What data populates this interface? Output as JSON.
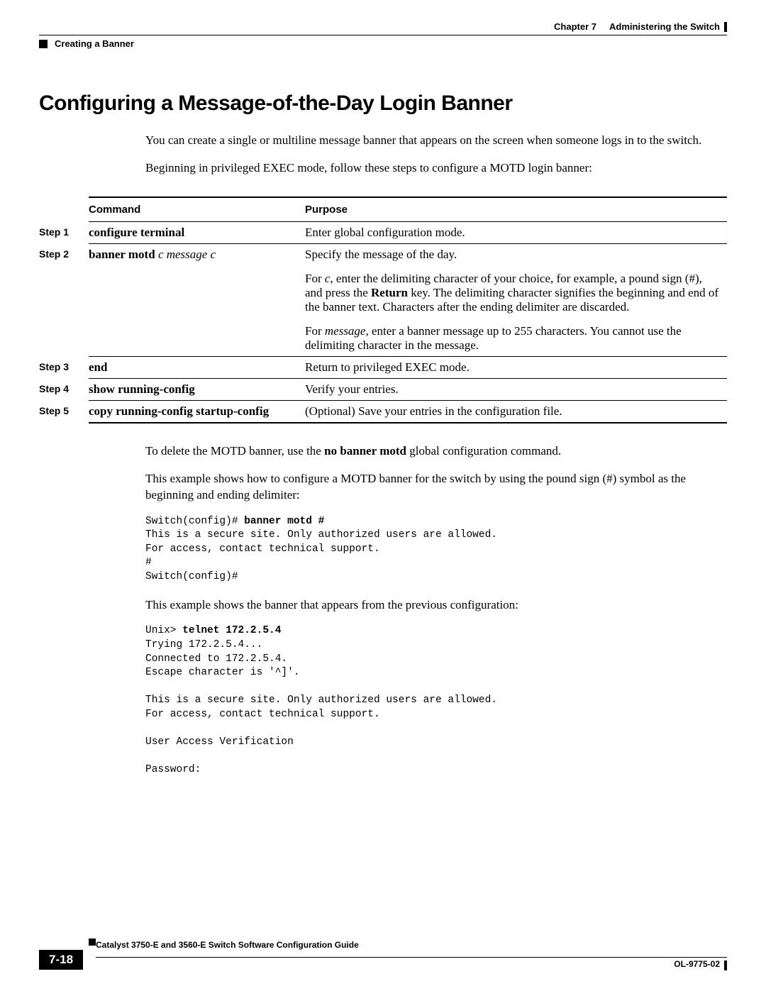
{
  "header": {
    "chapter_label": "Chapter 7",
    "chapter_title": "Administering the Switch",
    "section_title": "Creating a Banner"
  },
  "title": "Configuring a Message-of-the-Day Login Banner",
  "intro_p1": "You can create a single or multiline message banner that appears on the screen when someone logs in to the switch.",
  "intro_p2": "Beginning in privileged EXEC mode, follow these steps to configure a MOTD login banner:",
  "table": {
    "col_command": "Command",
    "col_purpose": "Purpose",
    "rows": [
      {
        "step": "Step 1",
        "command_bold": "configure terminal",
        "command_args": "",
        "purpose_paras": [
          "Enter global configuration mode."
        ]
      },
      {
        "step": "Step 2",
        "command_bold": "banner motd",
        "command_args": " c message c",
        "purpose_paras": [
          "Specify the message of the day.",
          "For <i>c</i>, enter the delimiting character of your choice, for example, a pound sign (#), and press the <b>Return</b> key. The delimiting character signifies the beginning and end of the banner text. Characters after the ending delimiter are discarded.",
          "For <i>message</i>, enter a banner message up to 255 characters. You cannot use the delimiting character in the message."
        ]
      },
      {
        "step": "Step 3",
        "command_bold": "end",
        "command_args": "",
        "purpose_paras": [
          "Return to privileged EXEC mode."
        ]
      },
      {
        "step": "Step 4",
        "command_bold": "show running-config",
        "command_args": "",
        "purpose_paras": [
          "Verify your entries."
        ]
      },
      {
        "step": "Step 5",
        "command_bold": "copy running-config startup-config",
        "command_args": "",
        "purpose_paras": [
          "(Optional) Save your entries in the configuration file."
        ]
      }
    ]
  },
  "after_p1_pre": "To delete the MOTD banner, use the ",
  "after_p1_bold": "no banner motd",
  "after_p1_post": " global configuration command.",
  "after_p2": "This example shows how to configure a MOTD banner for the switch by using the pound sign (#) symbol as the beginning and ending delimiter:",
  "code1_prefix": "Switch(config)# ",
  "code1_cmd": "banner motd #",
  "code1_rest": "This is a secure site. Only authorized users are allowed.\nFor access, contact technical support.\n#\nSwitch(config)#",
  "after_p3": "This example shows the banner that appears from the previous configuration:",
  "code2_prefix": "Unix> ",
  "code2_cmd": "telnet 172.2.5.4",
  "code2_rest": "Trying 172.2.5.4...\nConnected to 172.2.5.4.\nEscape character is '^]'.\n\nThis is a secure site. Only authorized users are allowed.\nFor access, contact technical support.\n\nUser Access Verification\n\nPassword:",
  "footer": {
    "guide_title": "Catalyst 3750-E and 3560-E Switch Software Configuration Guide",
    "page_number": "7-18",
    "doc_number": "OL-9775-02"
  },
  "colors": {
    "text": "#000000",
    "background": "#ffffff"
  },
  "fonts": {
    "body": "Times New Roman",
    "heading": "Arial",
    "mono": "Courier New",
    "title_size_pt": 30,
    "body_size_pt": 17,
    "code_size_pt": 14.5,
    "small_size_pt": 13
  }
}
